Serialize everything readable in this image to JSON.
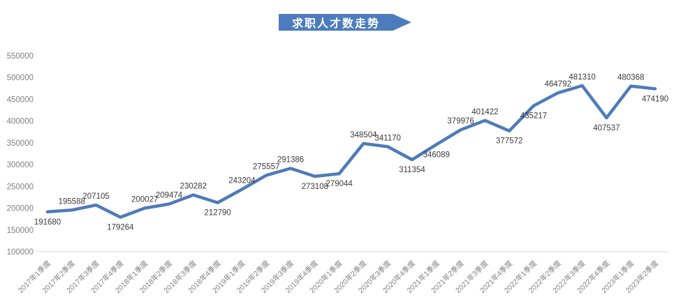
{
  "title": {
    "text": "求职人才数走势"
  },
  "colors": {
    "banner": "#4C7CBE",
    "line": "#4E7AB8",
    "axis_line": "#D9D9D9",
    "tick_label": "#808080",
    "data_label": "#3A3A3A"
  },
  "chart_data": {
    "type": "line",
    "title": "求职人才数走势",
    "categories": [
      "2017年1季度",
      "2017年2季度",
      "2017年3季度",
      "2017年4季度",
      "2018年1季度",
      "2018年2季度",
      "2018年3季度",
      "2018年4季度",
      "2019年1季度",
      "2019年2季度",
      "2019年3季度",
      "2019年4季度",
      "2020年1季度",
      "2020年2季度",
      "2020年3季度",
      "2020年4季度",
      "2021年1季度",
      "2021年2季度",
      "2021年3季度",
      "2021年4季度",
      "2022年1季度",
      "2022年2季度",
      "2022年3季度",
      "2022年4季度",
      "2023年1季度",
      "2023年2季度"
    ],
    "values": [
      191680,
      195588,
      207105,
      179264,
      200027,
      209474,
      230282,
      212790,
      243204,
      275557,
      291386,
      273108,
      279044,
      348504,
      341170,
      311354,
      346089,
      379976,
      401422,
      377572,
      435217,
      464792,
      481310,
      407537,
      480368,
      474190
    ],
    "label_side": [
      "below",
      "above",
      "above",
      "below",
      "above",
      "above",
      "above",
      "below",
      "above",
      "above",
      "above",
      "below",
      "below",
      "above",
      "above",
      "below",
      "below",
      "above",
      "above",
      "below",
      "below",
      "above",
      "above",
      "below",
      "above",
      "below"
    ],
    "ylim": [
      100000,
      550000
    ],
    "ytick_step": 50000,
    "grid": false,
    "legend": false
  }
}
